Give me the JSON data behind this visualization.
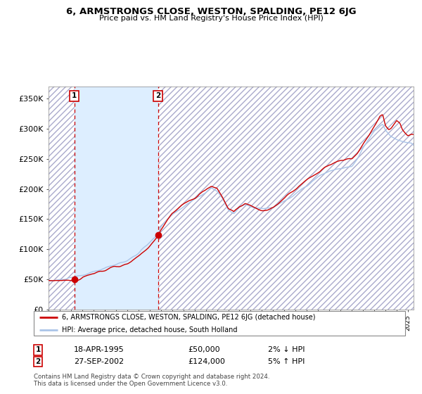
{
  "title": "6, ARMSTRONGS CLOSE, WESTON, SPALDING, PE12 6JG",
  "subtitle": "Price paid vs. HM Land Registry's House Price Index (HPI)",
  "ylabel_ticks": [
    "£0",
    "£50K",
    "£100K",
    "£150K",
    "£200K",
    "£250K",
    "£300K",
    "£350K"
  ],
  "ytick_values": [
    0,
    50000,
    100000,
    150000,
    200000,
    250000,
    300000,
    350000
  ],
  "ylim": [
    0,
    370000
  ],
  "sale1_date": 1995.29,
  "sale1_price": 50000,
  "sale1_label": "1",
  "sale2_date": 2002.74,
  "sale2_price": 124000,
  "sale2_label": "2",
  "sale1_info": "18-APR-1995",
  "sale1_amount": "£50,000",
  "sale1_hpi": "2% ↓ HPI",
  "sale2_info": "27-SEP-2002",
  "sale2_amount": "£124,000",
  "sale2_hpi": "5% ↑ HPI",
  "hpi_line_color": "#aac4e8",
  "price_line_color": "#cc0000",
  "point_color": "#cc0000",
  "dashed_line_color": "#cc0000",
  "shade_color": "#ddeeff",
  "legend1_label": "6, ARMSTRONGS CLOSE, WESTON, SPALDING, PE12 6JG (detached house)",
  "legend2_label": "HPI: Average price, detached house, South Holland",
  "footnote": "Contains HM Land Registry data © Crown copyright and database right 2024.\nThis data is licensed under the Open Government Licence v3.0.",
  "xlim_start": 1993.0,
  "xlim_end": 2025.5
}
